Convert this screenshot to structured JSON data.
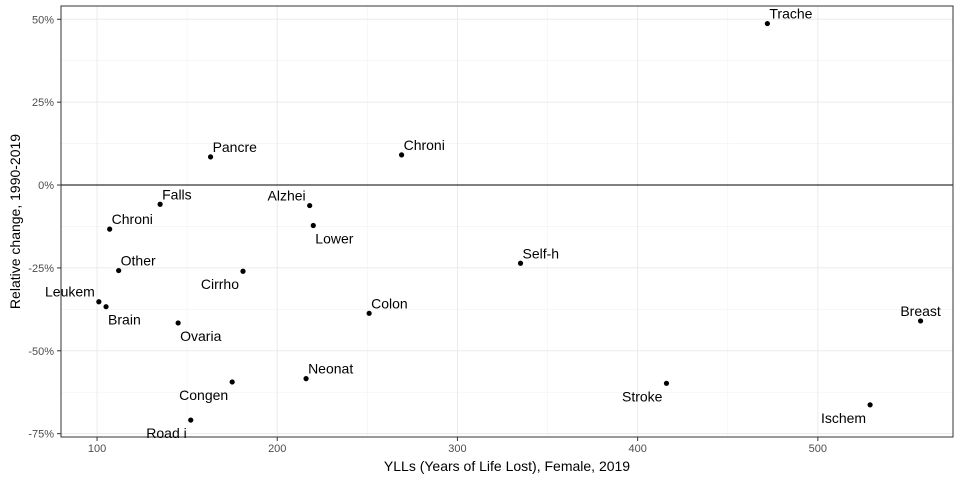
{
  "chart_data": {
    "type": "scatter",
    "title": "",
    "xlabel": "YLLs (Years of Life Lost), Female, 2019",
    "ylabel": "Relative change, 1990-2019",
    "xlim": [
      80,
      575
    ],
    "ylim": [
      -0.76,
      0.54
    ],
    "x_ticks": [
      100,
      200,
      300,
      400,
      500
    ],
    "x_tick_labels": [
      "100",
      "200",
      "300",
      "400",
      "500"
    ],
    "y_ticks": [
      -0.75,
      -0.5,
      -0.25,
      0,
      0.25,
      0.5
    ],
    "y_tick_labels": [
      "-75%",
      "-50%",
      "-25%",
      "0%",
      "25%",
      "50%"
    ],
    "reference_line_y": 0,
    "grid": true,
    "legend": "none",
    "point_color": "#000000",
    "points": [
      {
        "label": "Trache",
        "x": 472,
        "y": 0.487,
        "label_pos": "upper-right"
      },
      {
        "label": "Pancre",
        "x": 163,
        "y": 0.085,
        "label_pos": "upper-right"
      },
      {
        "label": "Chroni",
        "x": 269,
        "y": 0.091,
        "label_pos": "upper-right"
      },
      {
        "label": "Falls",
        "x": 135,
        "y": -0.058,
        "label_pos": "upper-right"
      },
      {
        "label": "Alzhei",
        "x": 218,
        "y": -0.062,
        "label_pos": "upper-left"
      },
      {
        "label": "Chroni",
        "x": 107,
        "y": -0.133,
        "label_pos": "upper-right"
      },
      {
        "label": "Lower",
        "x": 220,
        "y": -0.122,
        "label_pos": "lower-right"
      },
      {
        "label": "Self-h",
        "x": 335,
        "y": -0.236,
        "label_pos": "upper-right"
      },
      {
        "label": "Other",
        "x": 112,
        "y": -0.258,
        "label_pos": "upper-right"
      },
      {
        "label": "Cirrho",
        "x": 181,
        "y": -0.26,
        "label_pos": "lower-left"
      },
      {
        "label": "Leukem",
        "x": 101,
        "y": -0.352,
        "label_pos": "upper-left"
      },
      {
        "label": "Brain",
        "x": 105,
        "y": -0.367,
        "label_pos": "lower-right"
      },
      {
        "label": "Colon",
        "x": 251,
        "y": -0.387,
        "label_pos": "upper-right"
      },
      {
        "label": "Breast",
        "x": 557,
        "y": -0.41,
        "label_pos": "upper-center"
      },
      {
        "label": "Ovaria",
        "x": 145,
        "y": -0.416,
        "label_pos": "lower-right"
      },
      {
        "label": "Neonat",
        "x": 216,
        "y": -0.584,
        "label_pos": "upper-right"
      },
      {
        "label": "Congen",
        "x": 175,
        "y": -0.594,
        "label_pos": "lower-left"
      },
      {
        "label": "Stroke",
        "x": 416,
        "y": -0.598,
        "label_pos": "lower-left"
      },
      {
        "label": "Ischem",
        "x": 529,
        "y": -0.663,
        "label_pos": "lower-left"
      },
      {
        "label": "Road i",
        "x": 152,
        "y": -0.709,
        "label_pos": "lower-left"
      }
    ]
  }
}
